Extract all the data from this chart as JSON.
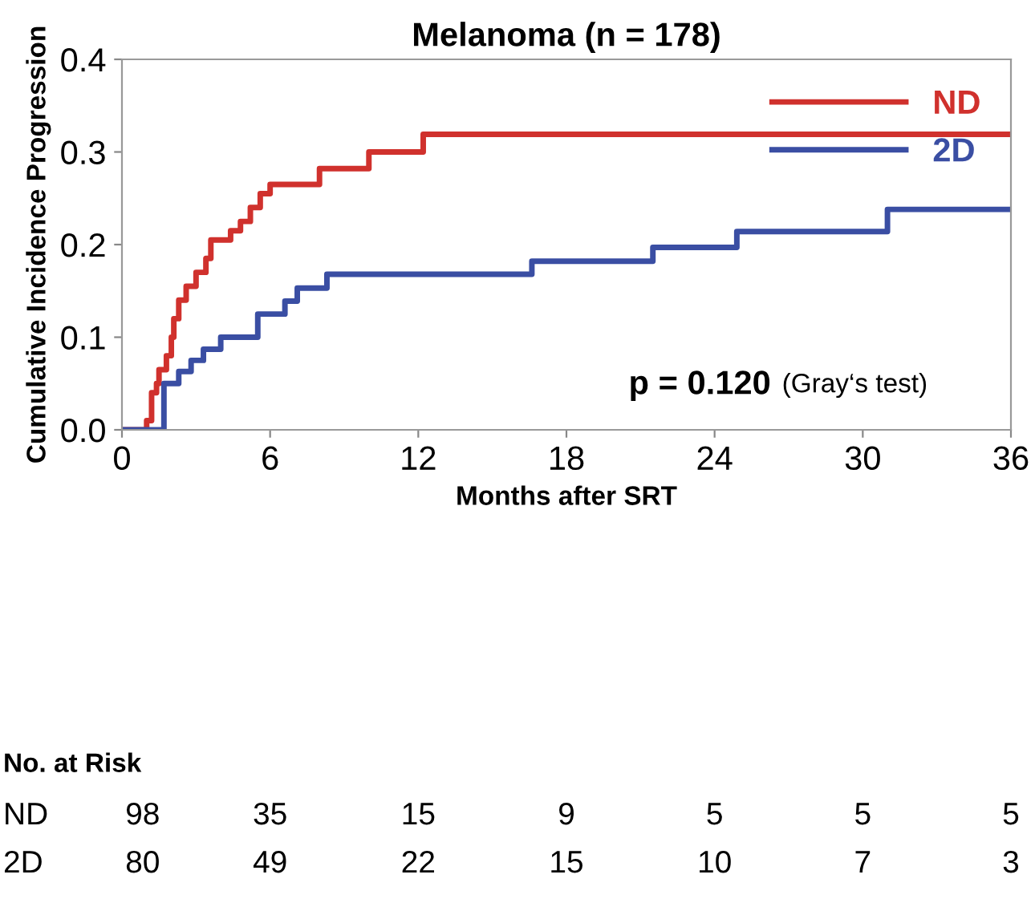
{
  "chart_data": {
    "type": "step",
    "title": "Melanoma (n = 178)",
    "xlabel": "Months after SRT",
    "ylabel": "Cumulative Incidence Progression",
    "xlim": [
      0,
      36
    ],
    "xticks": [
      0,
      6,
      12,
      18,
      24,
      30,
      36
    ],
    "ylim": [
      0,
      0.4
    ],
    "yticks": [
      {
        "value": 0,
        "label": "0.0"
      },
      {
        "value": 0.1,
        "label": "0.1"
      },
      {
        "value": 0.2,
        "label": "0.2"
      },
      {
        "value": 0.3,
        "label": "0.3"
      },
      {
        "value": 0.4,
        "label": "0.4"
      }
    ],
    "grid": false,
    "legend": "top right",
    "series": [
      {
        "name": "ND",
        "color": "#d0312d",
        "x": [
          0,
          1.0,
          1.2,
          1.4,
          1.5,
          1.8,
          2.0,
          2.1,
          2.3,
          2.6,
          3.0,
          3.4,
          3.6,
          4.4,
          4.8,
          5.2,
          5.6,
          6.0,
          8.0,
          10.0,
          12.2,
          36
        ],
        "values": [
          0,
          0.01,
          0.04,
          0.05,
          0.065,
          0.08,
          0.1,
          0.12,
          0.14,
          0.155,
          0.17,
          0.185,
          0.205,
          0.215,
          0.225,
          0.24,
          0.255,
          0.265,
          0.282,
          0.3,
          0.319,
          0.319
        ]
      },
      {
        "name": "2D",
        "color": "#3a4ea3",
        "x": [
          0,
          1.7,
          2.3,
          2.8,
          3.3,
          4.0,
          5.5,
          6.6,
          7.1,
          8.3,
          16.6,
          21.5,
          24.9,
          31.0,
          36
        ],
        "values": [
          0,
          0.05,
          0.063,
          0.075,
          0.087,
          0.1,
          0.125,
          0.139,
          0.153,
          0.168,
          0.182,
          0.197,
          0.214,
          0.238,
          0.238
        ]
      }
    ],
    "annotations": [
      "p = 0.120",
      "(Gray‘s test)",
      "No. at Risk",
      "ND",
      "98",
      "35",
      "15",
      "9",
      "5",
      "5",
      "5",
      "2D",
      "80",
      "49",
      "22",
      "15",
      "10",
      "7",
      "3"
    ]
  }
}
